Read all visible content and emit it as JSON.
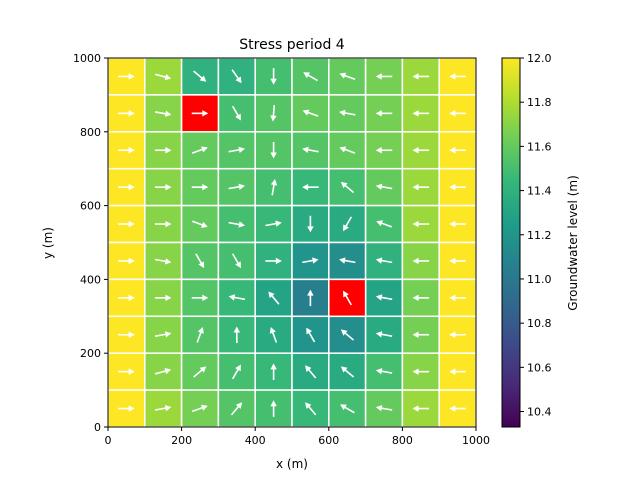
{
  "chart_data": {
    "type": "heatmap",
    "title": "Stress period 4",
    "xlabel": "x (m)",
    "ylabel": "y (m)",
    "xlim": [
      0,
      1000
    ],
    "ylim": [
      0,
      1000
    ],
    "xticks": [
      "0",
      "200",
      "400",
      "600",
      "800",
      "1000"
    ],
    "yticks": [
      "0",
      "200",
      "400",
      "600",
      "800",
      "1000"
    ],
    "grid": false,
    "colorbar": {
      "label": "Groundwater level (m)",
      "range": [
        10.33,
        12.0
      ],
      "ticks": [
        "10.4",
        "10.6",
        "10.8",
        "11.0",
        "11.2",
        "11.4",
        "11.6",
        "11.8",
        "12.0"
      ],
      "colormap": "viridis"
    },
    "cell_size": 100,
    "rows_top_to_bottom_levels": [
      [
        12.0,
        11.75,
        11.4,
        11.4,
        11.5,
        11.55,
        11.6,
        11.65,
        11.75,
        12.0
      ],
      [
        12.0,
        11.7,
        null,
        11.5,
        11.55,
        11.6,
        11.6,
        11.65,
        11.75,
        12.0
      ],
      [
        12.0,
        11.7,
        11.6,
        11.55,
        11.55,
        11.55,
        11.6,
        11.65,
        11.75,
        12.0
      ],
      [
        12.0,
        11.7,
        11.6,
        11.55,
        11.5,
        11.45,
        11.5,
        11.6,
        11.75,
        12.0
      ],
      [
        12.0,
        11.7,
        11.6,
        11.5,
        11.45,
        11.35,
        11.35,
        11.5,
        11.75,
        12.0
      ],
      [
        12.0,
        11.7,
        11.55,
        11.5,
        11.4,
        11.2,
        11.15,
        11.4,
        11.7,
        12.0
      ],
      [
        12.0,
        11.7,
        11.55,
        11.45,
        11.3,
        11.05,
        null,
        11.3,
        11.65,
        12.0
      ],
      [
        12.0,
        11.7,
        11.55,
        11.45,
        11.35,
        11.2,
        11.15,
        11.35,
        11.65,
        12.0
      ],
      [
        12.0,
        11.7,
        11.6,
        11.5,
        11.45,
        11.35,
        11.35,
        11.5,
        11.7,
        12.0
      ],
      [
        12.0,
        11.75,
        11.65,
        11.55,
        11.5,
        11.45,
        11.5,
        11.6,
        11.75,
        12.0
      ]
    ],
    "highlighted_cells": [
      {
        "x": 250,
        "y": 850,
        "color": "#ff0000"
      },
      {
        "x": 650,
        "y": 350,
        "color": "#ff0000"
      }
    ],
    "cell_border_color": "#ffffff",
    "arrow_color": "#ffffff",
    "rows_top_to_bottom_arrow_angles_deg": [
      [
        0,
        -15,
        -40,
        -55,
        -90,
        150,
        160,
        180,
        180,
        180
      ],
      [
        0,
        -10,
        0,
        -60,
        -95,
        160,
        170,
        180,
        180,
        180
      ],
      [
        0,
        0,
        20,
        10,
        -90,
        170,
        160,
        180,
        180,
        180
      ],
      [
        0,
        0,
        0,
        10,
        80,
        180,
        140,
        170,
        180,
        180
      ],
      [
        0,
        0,
        -20,
        -10,
        10,
        -90,
        -120,
        160,
        180,
        180
      ],
      [
        0,
        -10,
        -60,
        -60,
        0,
        10,
        170,
        170,
        180,
        180
      ],
      [
        0,
        0,
        0,
        170,
        130,
        90,
        120,
        170,
        180,
        180
      ],
      [
        0,
        10,
        70,
        90,
        110,
        120,
        140,
        170,
        180,
        180
      ],
      [
        0,
        15,
        40,
        60,
        90,
        130,
        140,
        170,
        180,
        180
      ],
      [
        0,
        10,
        20,
        50,
        90,
        130,
        150,
        170,
        180,
        180
      ]
    ]
  }
}
